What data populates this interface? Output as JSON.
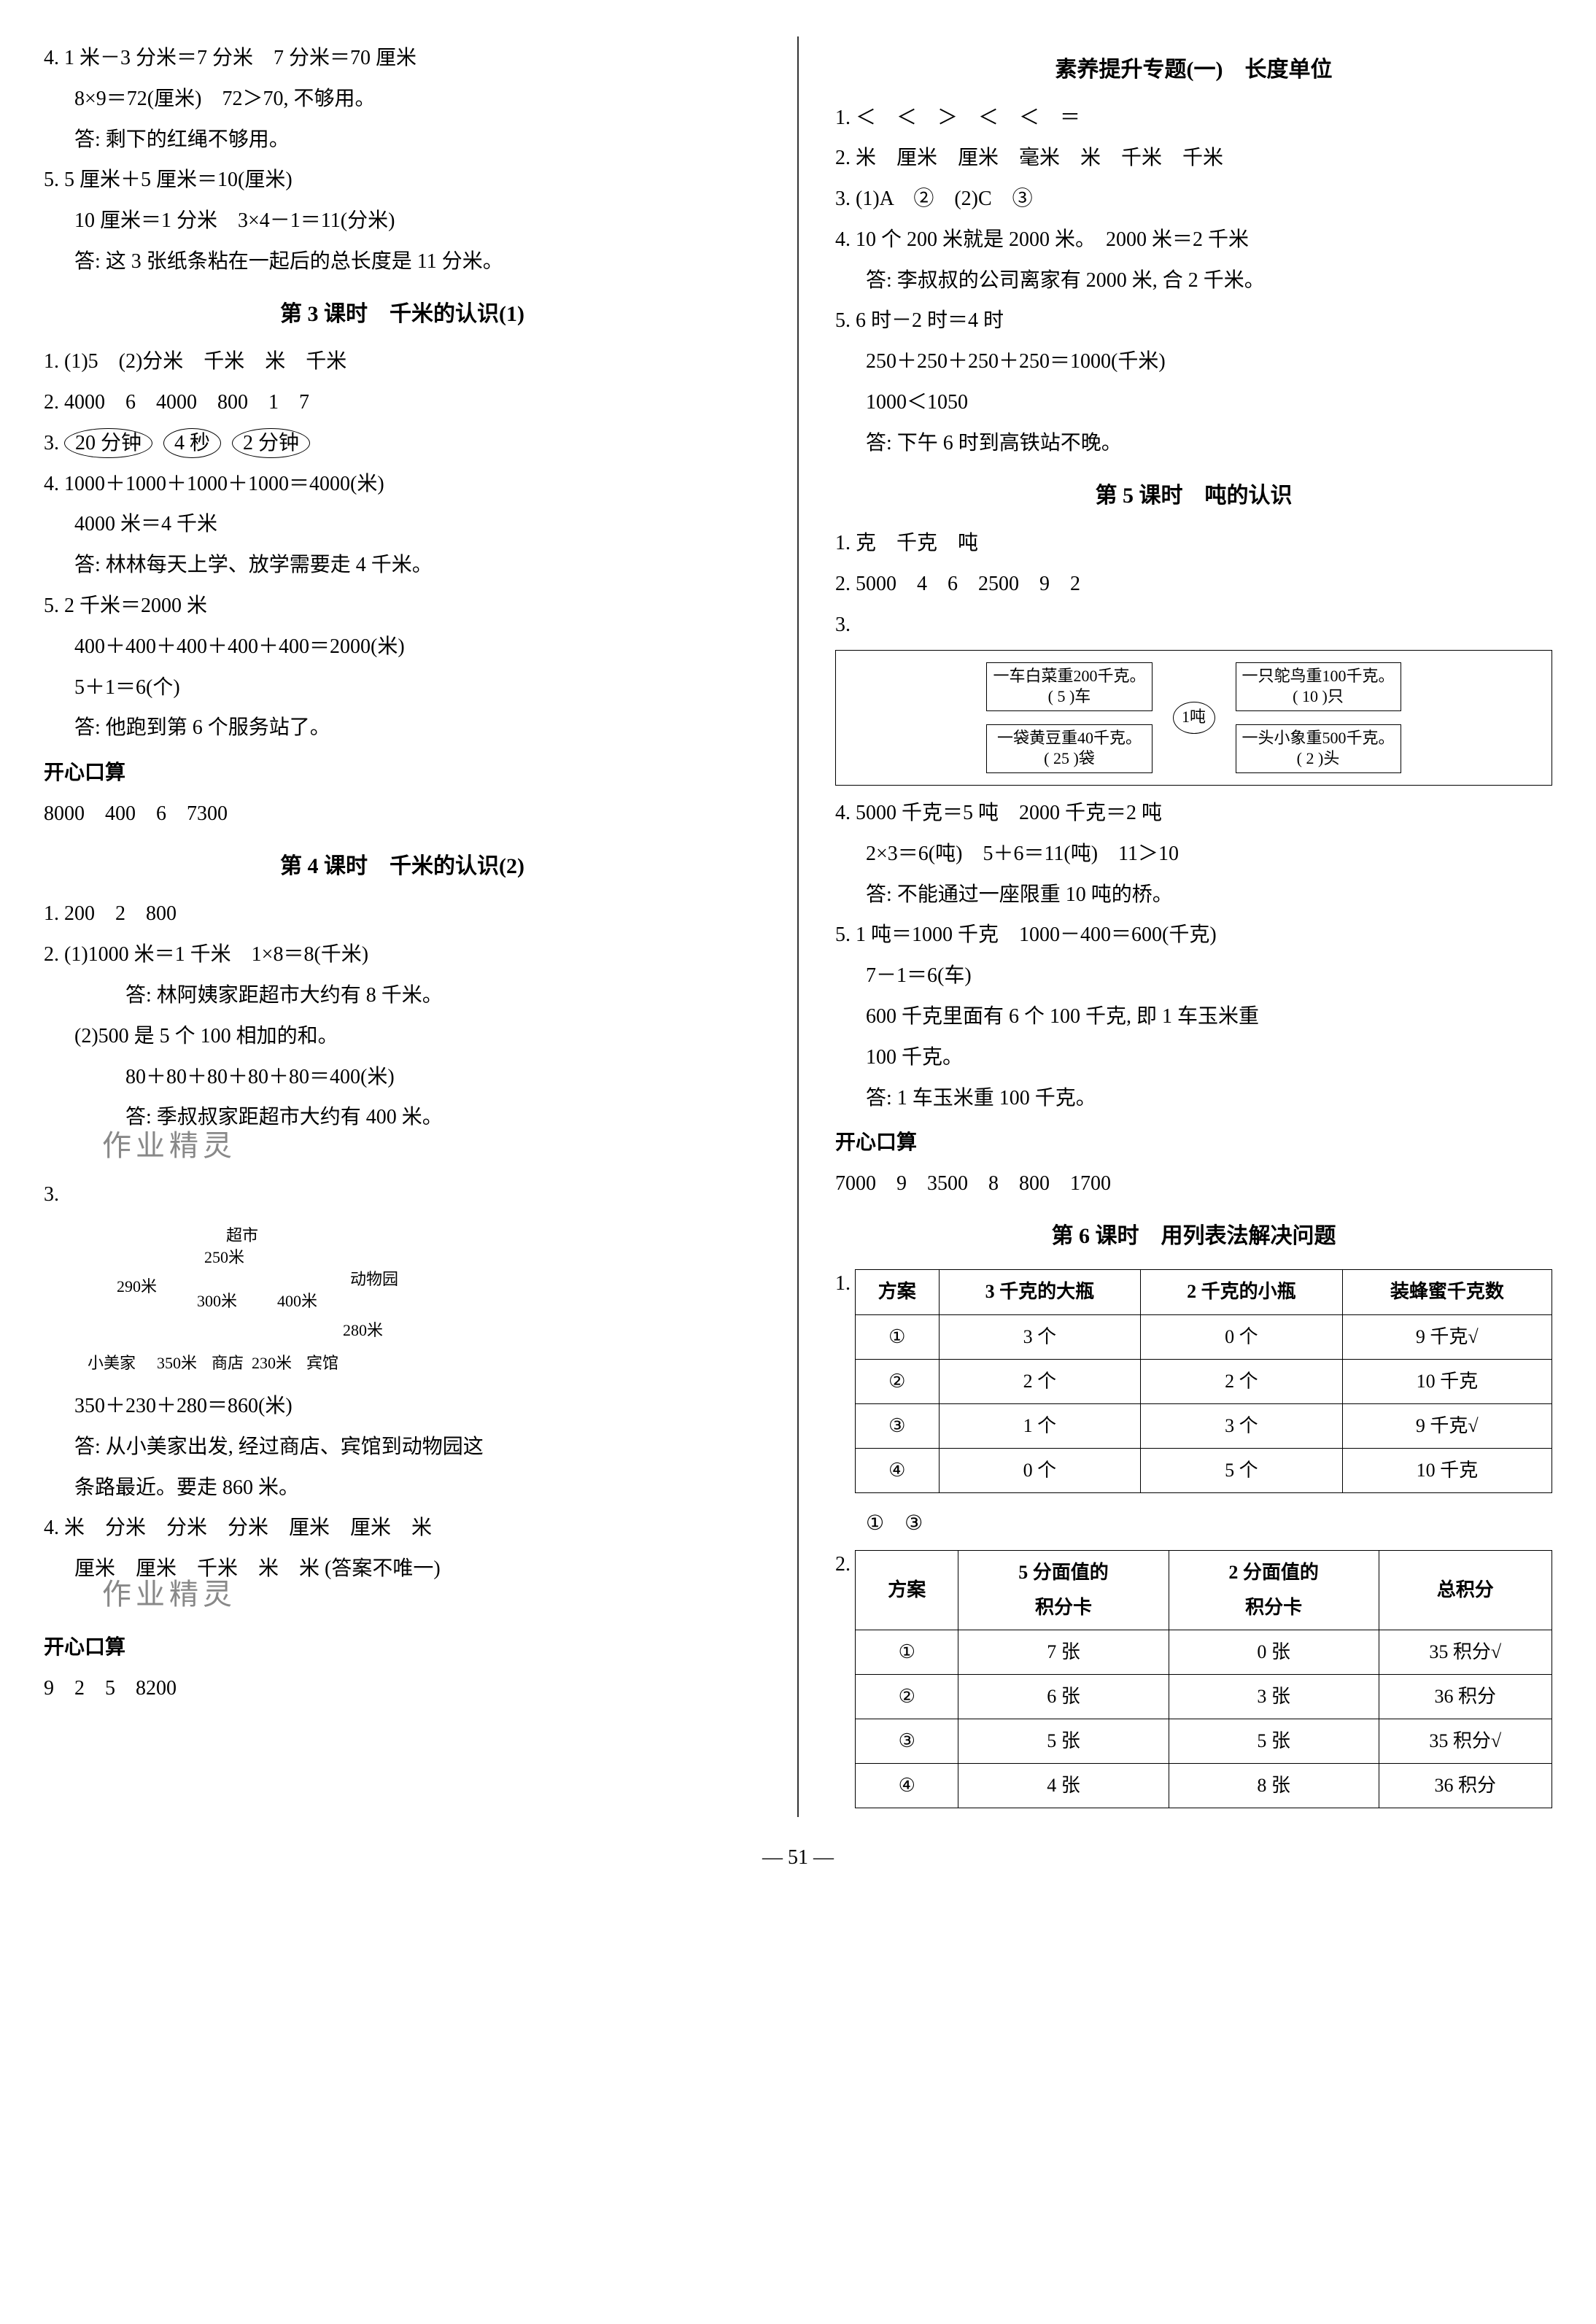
{
  "left": {
    "q4": {
      "l1": "4. 1 米－3 分米＝7 分米　7 分米＝70 厘米",
      "l2": "8×9＝72(厘米)　72＞70, 不够用。",
      "l3": "答: 剩下的红绳不够用。"
    },
    "q5": {
      "l1": "5. 5 厘米＋5 厘米＝10(厘米)",
      "l2": "10 厘米＝1 分米　3×4－1＝11(分米)",
      "l3": "答: 这 3 张纸条粘在一起后的总长度是 11 分米。"
    },
    "s3": {
      "title": "第 3 课时　千米的认识(1)",
      "q1": "1. (1)5　(2)分米　千米　米　千米",
      "q2": "2. 4000　6　4000　800　1　7",
      "q3": "3.",
      "q3_ovals": [
        "20 分钟",
        "4 秒",
        "2 分钟"
      ],
      "q4": {
        "l1": "4. 1000＋1000＋1000＋1000＝4000(米)",
        "l2": "4000 米＝4 千米",
        "l3": "答: 林林每天上学、放学需要走 4 千米。"
      },
      "q5": {
        "l1": "5. 2 千米＝2000 米",
        "l2": "400＋400＋400＋400＋400＝2000(米)",
        "l3": "5＋1＝6(个)",
        "l4": "答: 他跑到第 6 个服务站了。"
      },
      "kx_title": "开心口算",
      "kx": "8000　400　6　7300"
    },
    "s4": {
      "title": "第 4 课时　千米的认识(2)",
      "q1": "1. 200　2　800",
      "q2a": "2. (1)1000 米＝1 千米　1×8＝8(千米)",
      "q2a_ans": "答: 林阿姨家距超市大约有 8 千米。",
      "q2b": "(2)500 是 5 个 100 相加的和。",
      "q2b_calc": "80＋80＋80＋80＋80＝400(米)",
      "q2b_ans": "答: 季叔叔家距超市大约有 400 米。",
      "q3": "3.",
      "map": {
        "supermarket": "超市",
        "zoo": "动物园",
        "xiaomei": "小美家",
        "shop": "商店",
        "hotel": "宾馆",
        "d250": "250米",
        "d290": "290米",
        "d300": "300米",
        "d400": "400米",
        "d350": "350米",
        "d230": "230米",
        "d280": "280米"
      },
      "q3_calc": "350＋230＋280＝860(米)",
      "q3_ans1": "答: 从小美家出发, 经过商店、宾馆到动物园这",
      "q3_ans2": "条路最近。要走 860 米。",
      "q4a": "4. 米　分米　分米　分米　厘米　厘米　米",
      "q4b": "厘米　厘米　千米　米　米 (答案不唯一)",
      "kx_title": "开心口算",
      "kx": "9　2　5　8200"
    }
  },
  "right": {
    "s_sy": {
      "title": "素养提升专题(一)　长度单位",
      "q1": "1. ＜　＜　＞　＜　＜　＝",
      "q2": "2. 米　厘米　厘米　毫米　米　千米　千米",
      "q3": "3. (1)A　②　(2)C　③",
      "q4a": "4. 10 个 200 米就是 2000 米。　2000 米＝2 千米",
      "q4b": "答: 李叔叔的公司离家有 2000 米, 合 2 千米。",
      "q5a": "5. 6 时－2 时＝4 时",
      "q5b": "250＋250＋250＋250＝1000(千米)",
      "q5c": "1000＜1050",
      "q5d": "答: 下午 6 时到高铁站不晚。"
    },
    "s5": {
      "title": "第 5 课时　吨的认识",
      "q1": "1. 克　千克　吨",
      "q2": "2. 5000　4　6　2500　9　2",
      "q3": "3.",
      "diagram": {
        "center": "1吨",
        "tl_t": "一车白菜重200千克。",
        "tl_b": "( 5 )车",
        "bl_t": "一袋黄豆重40千克。",
        "bl_b": "( 25 )袋",
        "tr_t": "一只鸵鸟重100千克。",
        "tr_b": "( 10 )只",
        "br_t": "一头小象重500千克。",
        "br_b": "( 2 )头"
      },
      "q4a": "4. 5000 千克＝5 吨　2000 千克＝2 吨",
      "q4b": "2×3＝6(吨)　5＋6＝11(吨)　11＞10",
      "q4c": "答: 不能通过一座限重 10 吨的桥。",
      "q5a": "5. 1 吨＝1000 千克　1000－400＝600(千克)",
      "q5b": "7－1＝6(车)",
      "q5c": "600 千克里面有 6 个 100 千克, 即 1 车玉米重",
      "q5d": "100 千克。",
      "q5e": "答: 1 车玉米重 100 千克。",
      "kx_title": "开心口算",
      "kx": "7000　9　3500　8　800　1700"
    },
    "s6": {
      "title": "第 6 课时　用列表法解决问题",
      "q1": "1.",
      "t1": {
        "head": [
          "方案",
          "3 千克的大瓶",
          "2 千克的小瓶",
          "装蜂蜜千克数"
        ],
        "rows": [
          [
            "①",
            "3 个",
            "0 个",
            "9 千克√"
          ],
          [
            "②",
            "2 个",
            "2 个",
            "10 千克"
          ],
          [
            "③",
            "1 个",
            "3 个",
            "9 千克√"
          ],
          [
            "④",
            "0 个",
            "5 个",
            "10 千克"
          ]
        ]
      },
      "q1_ans": "①　③",
      "q2": "2.",
      "t2": {
        "head": [
          "方案",
          "5 分面值的\n积分卡",
          "2 分面值的\n积分卡",
          "总积分"
        ],
        "rows": [
          [
            "①",
            "7 张",
            "0 张",
            "35 积分√"
          ],
          [
            "②",
            "6 张",
            "3 张",
            "36 积分"
          ],
          [
            "③",
            "5 张",
            "5 张",
            "35 积分√"
          ],
          [
            "④",
            "4 张",
            "8 张",
            "36 积分"
          ]
        ]
      }
    }
  },
  "page_num": "— 51 —",
  "watermark": "作业精灵"
}
